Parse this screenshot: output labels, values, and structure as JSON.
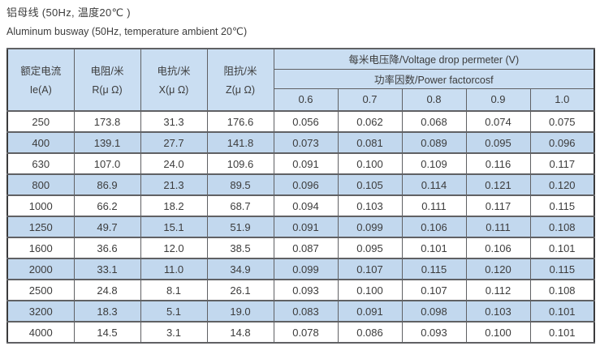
{
  "page": {
    "title_zh": "铝母线 (50Hz, 温度20℃ )",
    "title_en": "Aluminum busway (50Hz, temperature ambient 20℃)"
  },
  "table": {
    "col_headers": [
      {
        "zh": "额定电流",
        "en": "Ie(A)"
      },
      {
        "zh": "电阻/米",
        "en": "R(μ Ω)"
      },
      {
        "zh": "电抗/米",
        "en": "X(μ Ω)"
      },
      {
        "zh": "阻抗/米",
        "en": "Z(μ Ω)"
      }
    ],
    "voltage_drop_header": "每米电压降/Voltage drop permeter (V)",
    "power_factor_header": "功率因数/Power factorcosf",
    "power_factors": [
      "0.6",
      "0.7",
      "0.8",
      "0.9",
      "1.0"
    ],
    "rows": [
      [
        "250",
        "173.8",
        "31.3",
        "176.6",
        "0.056",
        "0.062",
        "0.068",
        "0.074",
        "0.075"
      ],
      [
        "400",
        "139.1",
        "27.7",
        "141.8",
        "0.073",
        "0.081",
        "0.089",
        "0.095",
        "0.096"
      ],
      [
        "630",
        "107.0",
        "24.0",
        "109.6",
        "0.091",
        "0.100",
        "0.109",
        "0.116",
        "0.117"
      ],
      [
        "800",
        "86.9",
        "21.3",
        "89.5",
        "0.096",
        "0.105",
        "0.114",
        "0.121",
        "0.120"
      ],
      [
        "1000",
        "66.2",
        "18.2",
        "68.7",
        "0.094",
        "0.103",
        "0.111",
        "0.117",
        "0.115"
      ],
      [
        "1250",
        "49.7",
        "15.1",
        "51.9",
        "0.091",
        "0.099",
        "0.106",
        "0.111",
        "0.108"
      ],
      [
        "1600",
        "36.6",
        "12.0",
        "38.5",
        "0.087",
        "0.095",
        "0.101",
        "0.106",
        "0.101"
      ],
      [
        "2000",
        "33.1",
        "11.0",
        "34.9",
        "0.099",
        "0.107",
        "0.115",
        "0.120",
        "0.115"
      ],
      [
        "2500",
        "24.8",
        "8.1",
        "26.1",
        "0.093",
        "0.100",
        "0.107",
        "0.112",
        "0.108"
      ],
      [
        "3200",
        "18.3",
        "5.1",
        "19.0",
        "0.083",
        "0.091",
        "0.098",
        "0.103",
        "0.101"
      ],
      [
        "4000",
        "14.5",
        "3.1",
        "14.8",
        "0.078",
        "0.086",
        "0.093",
        "0.100",
        "0.101"
      ]
    ]
  },
  "colors": {
    "header_bg": "#cadef2",
    "alt_row_bg": "#c2d8ee",
    "border_dark": "#3b3b3c",
    "border_inner": "#606164",
    "text": "#3c3c3c",
    "page_bg": "#ffffff"
  }
}
